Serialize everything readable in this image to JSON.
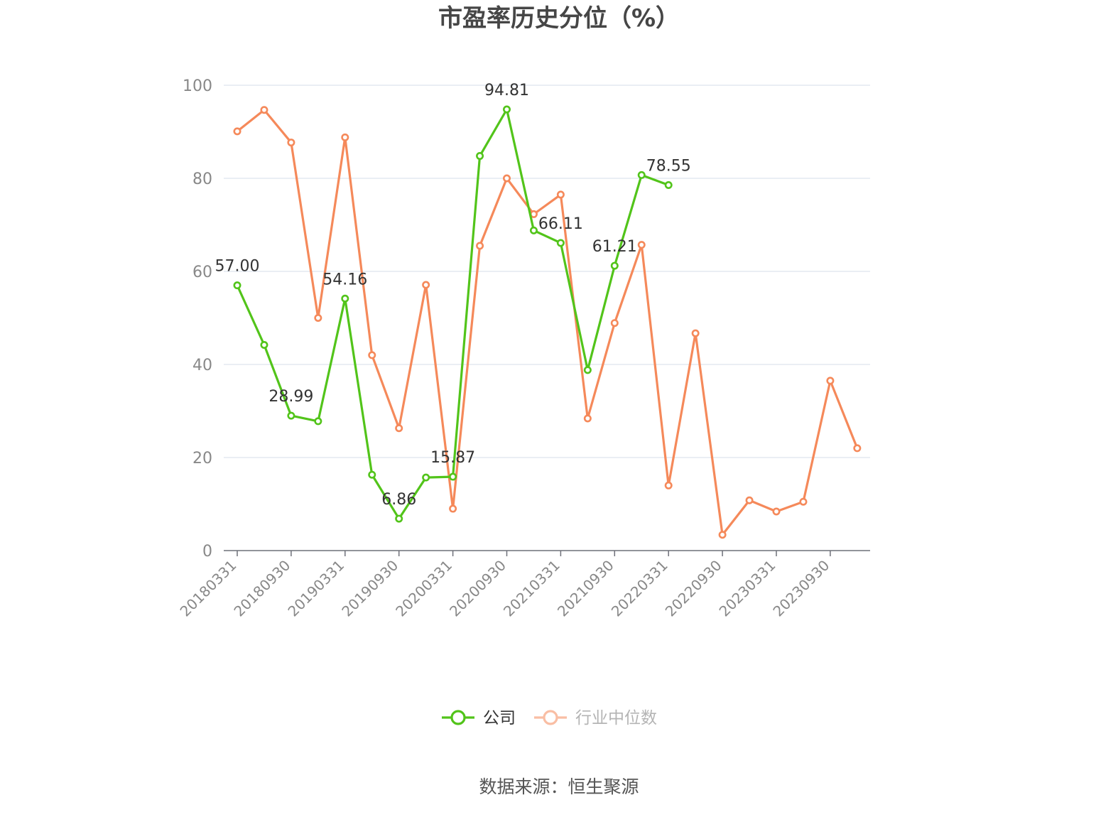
{
  "chart_data": {
    "type": "line",
    "title": "市盈率历史分位（%）",
    "categories": [
      "20180331",
      "20180630",
      "20180930",
      "20181231",
      "20190331",
      "20190630",
      "20190930",
      "20191231",
      "20200331",
      "20200630",
      "20200930",
      "20201231",
      "20210331",
      "20210630",
      "20210930",
      "20211231",
      "20220331",
      "20220630",
      "20220930",
      "20221231",
      "20230331",
      "20230630",
      "20230930",
      "20231231"
    ],
    "x_tick_labels": [
      "20180331",
      "20180930",
      "20190331",
      "20190930",
      "20200331",
      "20200930",
      "20210331",
      "20210930",
      "20220331",
      "20220930",
      "20230331",
      "20230930"
    ],
    "y_ticks": [
      0,
      20,
      40,
      60,
      80,
      100
    ],
    "ylim": [
      0,
      100
    ],
    "grid": true,
    "legend_position": "bottom",
    "series": [
      {
        "name": "公司",
        "color": "#52c41a",
        "values": [
          57.0,
          44.2,
          28.99,
          27.8,
          54.16,
          16.3,
          6.86,
          15.7,
          15.87,
          84.8,
          94.81,
          68.8,
          66.11,
          38.8,
          61.21,
          80.7,
          78.55,
          null,
          null,
          null,
          null,
          null,
          null,
          null
        ],
        "labels": [
          "57.00",
          null,
          "28.99",
          null,
          "54.16",
          null,
          "6.86",
          null,
          "15.87",
          null,
          "94.81",
          null,
          "66.11",
          null,
          "61.21",
          null,
          "78.55",
          null,
          null,
          null,
          null,
          null,
          null,
          null
        ]
      },
      {
        "name": "行业中位数",
        "color": "#f5895a",
        "values": [
          90.1,
          94.7,
          87.7,
          50.0,
          88.8,
          42.0,
          26.3,
          57.1,
          9.0,
          65.5,
          80.0,
          72.3,
          76.5,
          28.4,
          48.9,
          65.7,
          14.0,
          46.7,
          3.4,
          10.8,
          8.4,
          10.5,
          36.5,
          22.0
        ],
        "labels": []
      }
    ]
  },
  "legend": {
    "items": [
      {
        "label": "公司",
        "color": "#52c41a",
        "active": true
      },
      {
        "label": "行业中位数",
        "color": "#f5895a",
        "active": false
      }
    ]
  },
  "source": "数据来源：恒生聚源"
}
